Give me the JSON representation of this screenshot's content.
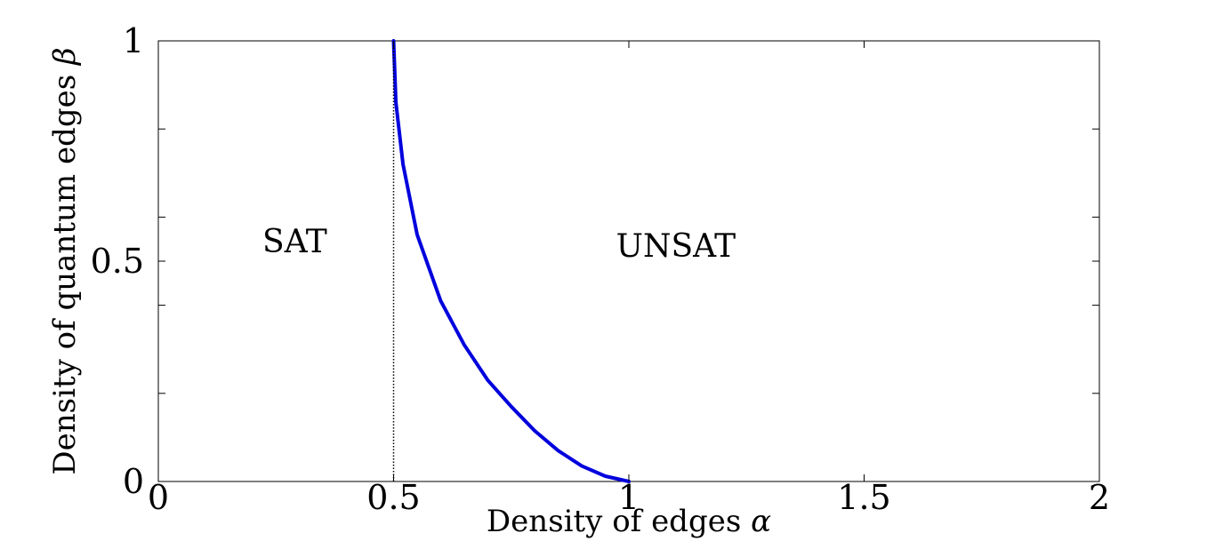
{
  "chart_data": {
    "type": "line",
    "title": "",
    "xlabel": "Density of edges",
    "xlabel_symbol": "α",
    "ylabel": "Density of quantum edges",
    "ylabel_symbol": "β",
    "xlim": [
      0,
      2
    ],
    "ylim": [
      0,
      1
    ],
    "xticks": [
      0,
      0.5,
      1,
      1.5,
      2
    ],
    "xtick_labels": [
      "0",
      "0.5",
      "1",
      "1.5",
      "2"
    ],
    "yticks_labeled": [
      0,
      0.5,
      1
    ],
    "ytick_labels": [
      "0",
      "0.5",
      "1"
    ],
    "yticks_minor": [
      0.2,
      0.4,
      0.6,
      0.8
    ],
    "grid": false,
    "series": [
      {
        "color": "#0000dd",
        "style": "solid",
        "x": [
          0.5,
          0.505,
          0.52,
          0.55,
          0.6,
          0.65,
          0.7,
          0.75,
          0.8,
          0.85,
          0.9,
          0.95,
          1.0
        ],
        "y": [
          1.0,
          0.86,
          0.72,
          0.56,
          0.41,
          0.31,
          0.23,
          0.17,
          0.115,
          0.07,
          0.035,
          0.012,
          0.0
        ]
      },
      {
        "color": "#000000",
        "style": "dotted",
        "x": [
          0.5,
          0.5
        ],
        "y": [
          0,
          1
        ]
      }
    ],
    "annotations": [
      {
        "text": "SAT",
        "x": 0.29,
        "y": 0.52
      },
      {
        "text": "UNSAT",
        "x": 1.1,
        "y": 0.51
      }
    ]
  }
}
